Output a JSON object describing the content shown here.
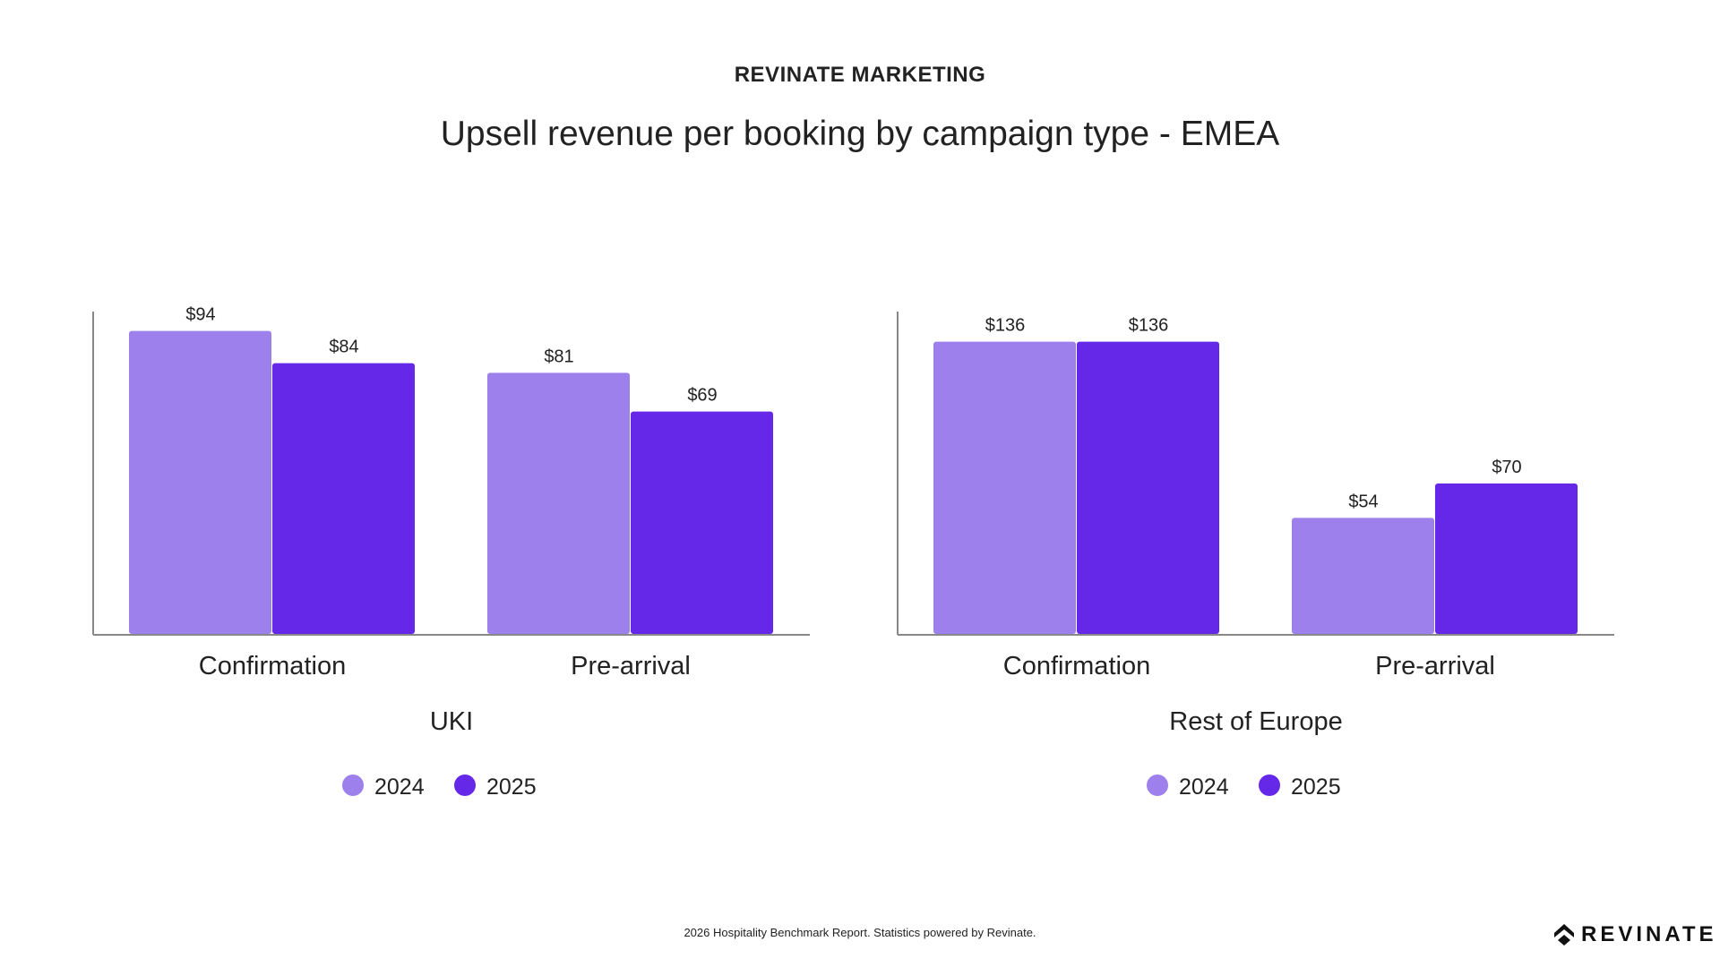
{
  "header": {
    "brand": "REVINATE MARKETING",
    "title": "Upsell revenue per booking by campaign type - EMEA"
  },
  "colors": {
    "2024": "#9e80ec",
    "2025": "#6628e8",
    "axis": "#888888"
  },
  "chart_data": [
    {
      "type": "bar",
      "title": "UKI",
      "categories": [
        "Confirmation",
        "Pre-arrival"
      ],
      "series": [
        {
          "name": "2024",
          "values": [
            94,
            81
          ],
          "labels": [
            "$94",
            "$81"
          ]
        },
        {
          "name": "2025",
          "values": [
            84,
            69
          ],
          "labels": [
            "$84",
            "$69"
          ]
        }
      ],
      "ylim": [
        0,
        100
      ],
      "legend": "bottom"
    },
    {
      "type": "bar",
      "title": "Rest of Europe",
      "categories": [
        "Confirmation",
        "Pre-arrival"
      ],
      "series": [
        {
          "name": "2024",
          "values": [
            136,
            54
          ],
          "labels": [
            "$136",
            "$54"
          ]
        },
        {
          "name": "2025",
          "values": [
            136,
            70
          ],
          "labels": [
            "$136",
            "$70"
          ]
        }
      ],
      "ylim": [
        0,
        150
      ],
      "legend": "bottom"
    }
  ],
  "footer": {
    "text": "2026 Hospitality Benchmark Report. Statistics powered by Revinate.",
    "logo_text": "REVINATE"
  }
}
